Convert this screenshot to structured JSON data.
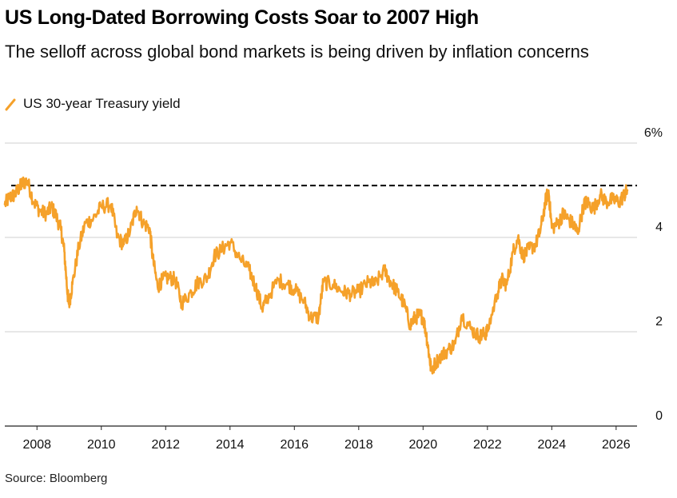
{
  "title": "US Long-Dated Borrowing Costs Soar to 2007 High",
  "subtitle": "The selloff across global bond markets is being driven by inflation concerns",
  "legend": {
    "label": "US 30-year Treasury yield",
    "color": "#f5a12a"
  },
  "source": "Source: Bloomberg",
  "chart_data": {
    "type": "line",
    "series": [
      {
        "name": "US 30-year Treasury yield",
        "color": "#f5a12a",
        "x": [
          2007.0,
          2007.15,
          2007.3,
          2007.45,
          2007.55,
          2007.7,
          2007.9,
          2008.1,
          2008.3,
          2008.45,
          2008.6,
          2008.75,
          2008.85,
          2008.95,
          2009.0,
          2009.1,
          2009.3,
          2009.5,
          2009.75,
          2010.0,
          2010.3,
          2010.5,
          2010.7,
          2010.9,
          2011.1,
          2011.3,
          2011.5,
          2011.6,
          2011.75,
          2011.9,
          2012.1,
          2012.3,
          2012.5,
          2012.8,
          2013.0,
          2013.3,
          2013.5,
          2013.75,
          2014.0,
          2014.3,
          2014.6,
          2014.8,
          2015.0,
          2015.15,
          2015.5,
          2015.8,
          2016.0,
          2016.3,
          2016.5,
          2016.75,
          2016.9,
          2017.2,
          2017.5,
          2017.75,
          2018.0,
          2018.3,
          2018.5,
          2018.8,
          2019.0,
          2019.2,
          2019.4,
          2019.6,
          2019.75,
          2019.9,
          2020.0,
          2020.1,
          2020.2,
          2020.25,
          2020.5,
          2020.75,
          2021.0,
          2021.2,
          2021.5,
          2021.75,
          2021.9,
          2022.0,
          2022.3,
          2022.45,
          2022.6,
          2022.8,
          2022.95,
          2023.1,
          2023.3,
          2023.5,
          2023.65,
          2023.8,
          2023.9,
          2024.0,
          2024.2,
          2024.35,
          2024.5,
          2024.7,
          2024.8,
          2025.0,
          2025.1,
          2025.3,
          2025.5,
          2025.7,
          2025.9,
          2026.1,
          2026.25,
          2026.35
        ],
        "values": [
          4.7,
          4.85,
          4.9,
          5.05,
          5.15,
          5.2,
          4.75,
          4.55,
          4.5,
          4.65,
          4.45,
          4.15,
          3.7,
          2.8,
          2.6,
          3.0,
          3.8,
          4.3,
          4.4,
          4.65,
          4.7,
          4.0,
          3.85,
          4.15,
          4.65,
          4.3,
          4.2,
          3.55,
          2.95,
          3.1,
          3.15,
          3.1,
          2.6,
          2.85,
          3.05,
          3.15,
          3.6,
          3.75,
          3.9,
          3.55,
          3.3,
          2.95,
          2.5,
          2.7,
          3.1,
          3.0,
          2.9,
          2.65,
          2.3,
          2.3,
          3.05,
          3.0,
          2.85,
          2.8,
          2.85,
          3.05,
          3.0,
          3.3,
          3.05,
          2.85,
          2.6,
          2.15,
          2.3,
          2.35,
          2.3,
          1.95,
          1.45,
          1.2,
          1.45,
          1.6,
          1.75,
          2.35,
          2.05,
          1.9,
          1.95,
          2.0,
          2.8,
          3.1,
          3.0,
          3.7,
          4.0,
          3.6,
          3.75,
          3.85,
          4.15,
          4.75,
          5.0,
          4.2,
          4.3,
          4.5,
          4.4,
          4.25,
          4.1,
          4.7,
          4.75,
          4.6,
          4.9,
          4.75,
          4.8,
          4.75,
          4.9,
          5.0
        ]
      }
    ],
    "reference_line": {
      "value": 5.1,
      "style": "dashed",
      "color": "#000000"
    },
    "x_ticks": [
      2008,
      2010,
      2012,
      2014,
      2016,
      2018,
      2020,
      2022,
      2024,
      2026
    ],
    "x_tick_labels": [
      "2008",
      "2010",
      "2012",
      "2014",
      "2016",
      "2018",
      "2020",
      "2022",
      "2024",
      "2026"
    ],
    "y_ticks": [
      0,
      2,
      4,
      6
    ],
    "y_tick_labels": [
      "0",
      "2",
      "4",
      "6%"
    ],
    "xlim": [
      2007.0,
      2026.65
    ],
    "ylim": [
      0,
      6
    ],
    "grid": true,
    "legend_position": "top-left",
    "y_axis_side": "right"
  }
}
